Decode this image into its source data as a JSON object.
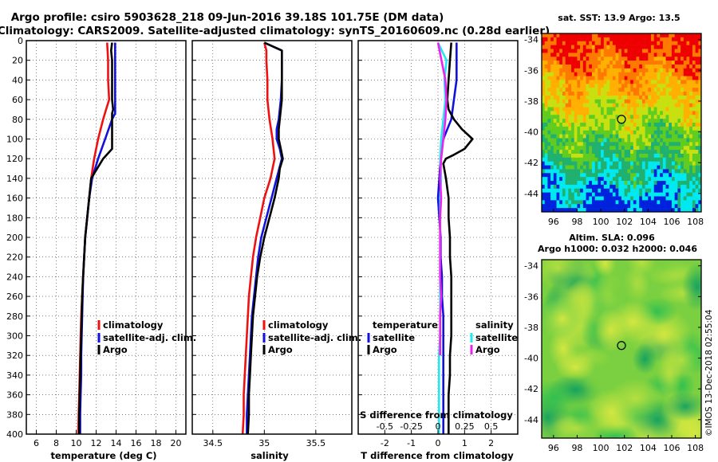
{
  "title": {
    "line1": "Argo profile: csiro 5903628_218 09-Jun-2016 39.18S 101.75E (DM data)",
    "line2": "Climatology: CARS2009. Satellite-adjusted climatology: synTS_20160609.nc (0.28d earlier)"
  },
  "colors": {
    "climatology": "#ee1111",
    "satellite": "#1111dd",
    "argo": "#000000",
    "satellite_salt": "#22e8f0",
    "argo_salt": "#ee22ee"
  },
  "depth_axis": {
    "range": [
      0,
      400
    ],
    "ticks": [
      0,
      20,
      40,
      60,
      80,
      100,
      120,
      140,
      160,
      180,
      200,
      220,
      240,
      260,
      280,
      300,
      320,
      340,
      360,
      380,
      400
    ]
  },
  "chart_data": [
    {
      "type": "line",
      "id": "temperature",
      "xlabel": "temperature (deg C)",
      "xlim": [
        5,
        21
      ],
      "ylim": [
        0,
        400
      ],
      "y_inverted": true,
      "grid": true,
      "xticks": [
        6,
        8,
        10,
        12,
        14,
        16,
        18,
        20
      ],
      "legend": {
        "position": "bottom-center",
        "entries": [
          "climatology",
          "satellite-adj. clim.",
          "Argo"
        ]
      },
      "series": [
        {
          "name": "climatology",
          "color": "#ee1111",
          "y": [
            2,
            20,
            40,
            60,
            70,
            80,
            100,
            120,
            140,
            160,
            180,
            200,
            220,
            240,
            260,
            280,
            300,
            320,
            340,
            360,
            380,
            400
          ],
          "x": [
            13.1,
            13.2,
            13.2,
            13.3,
            13.0,
            12.7,
            12.2,
            11.8,
            11.5,
            11.3,
            11.1,
            10.9,
            10.8,
            10.7,
            10.6,
            10.5,
            10.45,
            10.4,
            10.35,
            10.3,
            10.25,
            10.2
          ]
        },
        {
          "name": "satellite-adj. clim.",
          "color": "#1111dd",
          "y": [
            2,
            20,
            40,
            60,
            70,
            74,
            80,
            100,
            120,
            140,
            160,
            180,
            200,
            220,
            240,
            260,
            280,
            300,
            320,
            340,
            360,
            380,
            400
          ],
          "x": [
            13.9,
            13.9,
            13.9,
            13.9,
            13.9,
            13.9,
            13.6,
            12.9,
            12.2,
            11.6,
            11.3,
            11.1,
            10.9,
            10.8,
            10.7,
            10.65,
            10.6,
            10.55,
            10.5,
            10.5,
            10.45,
            10.4,
            10.4
          ]
        },
        {
          "name": "Argo",
          "color": "#000000",
          "y": [
            2,
            10,
            20,
            40,
            60,
            70,
            74,
            80,
            100,
            110,
            120,
            140,
            160,
            180,
            200,
            220,
            240,
            260,
            280,
            300,
            320,
            340,
            360,
            380,
            400
          ],
          "x": [
            13.6,
            13.5,
            13.6,
            13.6,
            13.6,
            13.7,
            13.6,
            13.6,
            13.6,
            13.6,
            12.7,
            11.5,
            11.3,
            11.1,
            10.9,
            10.8,
            10.7,
            10.6,
            10.55,
            10.5,
            10.45,
            10.4,
            10.35,
            10.3,
            10.3
          ]
        }
      ]
    },
    {
      "type": "line",
      "id": "salinity",
      "xlabel": "salinity",
      "xlim": [
        34.3,
        35.85
      ],
      "ylim": [
        0,
        400
      ],
      "y_inverted": true,
      "grid": true,
      "xticks": [
        34.5,
        35,
        35.5
      ],
      "legend": {
        "position": "bottom-center",
        "entries": [
          "climatology",
          "satellite-adj. clim.",
          "Argo"
        ]
      },
      "series": [
        {
          "name": "climatology",
          "color": "#ee1111",
          "y": [
            2,
            10,
            20,
            40,
            60,
            80,
            100,
            120,
            140,
            160,
            180,
            200,
            220,
            240,
            260,
            280,
            300,
            320,
            340,
            360,
            380,
            400
          ],
          "x": [
            35.0,
            35.02,
            35.02,
            35.03,
            35.03,
            35.05,
            35.08,
            35.1,
            35.06,
            35.0,
            34.96,
            34.92,
            34.89,
            34.87,
            34.85,
            34.84,
            34.83,
            34.82,
            34.81,
            34.8,
            34.8,
            34.79
          ]
        },
        {
          "name": "satellite-adj. clim.",
          "color": "#1111dd",
          "y": [
            2,
            10,
            20,
            40,
            60,
            80,
            90,
            100,
            110,
            120,
            140,
            160,
            180,
            200,
            220,
            240,
            260,
            280,
            300,
            320,
            340,
            360,
            380,
            400
          ],
          "x": [
            35.0,
            35.17,
            35.17,
            35.17,
            35.16,
            35.14,
            35.12,
            35.12,
            35.15,
            35.17,
            35.12,
            35.07,
            35.02,
            34.97,
            34.94,
            34.92,
            34.9,
            34.88,
            34.87,
            34.86,
            34.85,
            34.84,
            34.83,
            34.83
          ]
        },
        {
          "name": "Argo",
          "color": "#000000",
          "y": [
            2,
            10,
            20,
            40,
            60,
            80,
            90,
            100,
            110,
            120,
            130,
            140,
            160,
            180,
            200,
            220,
            240,
            260,
            280,
            300,
            320,
            340,
            360,
            380,
            400
          ],
          "x": [
            35.0,
            35.17,
            35.17,
            35.17,
            35.17,
            35.15,
            35.14,
            35.14,
            35.16,
            35.18,
            35.15,
            35.14,
            35.1,
            35.05,
            35.0,
            34.96,
            34.93,
            34.91,
            34.89,
            34.88,
            34.87,
            34.86,
            34.85,
            34.85,
            34.84
          ]
        }
      ]
    },
    {
      "type": "line",
      "id": "difference",
      "xlabel": "T difference from climatology",
      "xlabel_top": "S difference from climatology",
      "xlim": [
        -3,
        3
      ],
      "ylim": [
        0,
        400
      ],
      "y_inverted": true,
      "grid": true,
      "xticks": [
        -2,
        -1,
        0,
        1,
        2
      ],
      "s_xlim": [
        -0.75,
        0.75
      ],
      "s_xticks_labels": [
        "-0.5",
        "-0.25",
        "0",
        "0.25",
        "0.5"
      ],
      "s_xticks": [
        -0.5,
        -0.25,
        0,
        0.25,
        0.5
      ],
      "legend": {
        "position": "bottom",
        "temperature_heading": "temperature",
        "salinity_heading": "salinity",
        "entries": [
          "satellite",
          "Argo",
          "satellite",
          "Argo"
        ]
      },
      "series": [
        {
          "name": "T satellite",
          "color": "#1111dd",
          "units": "T",
          "y": [
            2,
            20,
            40,
            60,
            80,
            90,
            100,
            120,
            140,
            160,
            180,
            200,
            220,
            240,
            260,
            280,
            300,
            320,
            340,
            360,
            380,
            400
          ],
          "x": [
            0.7,
            0.7,
            0.7,
            0.6,
            0.5,
            0.35,
            0.2,
            0.1,
            0.05,
            0.0,
            0.05,
            0.1,
            0.1,
            0.15,
            0.15,
            0.2,
            0.2,
            0.2,
            0.2,
            0.2,
            0.2,
            0.2
          ]
        },
        {
          "name": "T Argo",
          "color": "#000000",
          "units": "T",
          "y": [
            2,
            20,
            40,
            60,
            70,
            80,
            90,
            100,
            110,
            116,
            120,
            125,
            140,
            160,
            180,
            200,
            220,
            240,
            260,
            280,
            300,
            320,
            340,
            360,
            380,
            400
          ],
          "x": [
            0.5,
            0.45,
            0.4,
            0.35,
            0.4,
            0.6,
            0.9,
            1.3,
            1.0,
            0.6,
            0.3,
            0.2,
            0.3,
            0.4,
            0.4,
            0.45,
            0.45,
            0.5,
            0.5,
            0.5,
            0.5,
            0.45,
            0.45,
            0.4,
            0.4,
            0.4
          ]
        },
        {
          "name": "S satellite",
          "color": "#22e8f0",
          "units": "S",
          "y": [
            2,
            20,
            40,
            60,
            80,
            100,
            120,
            140,
            160,
            180,
            200,
            220,
            240,
            260,
            280,
            300,
            320,
            340,
            360,
            380,
            400
          ],
          "x": [
            0.0,
            0.08,
            0.06,
            0.07,
            0.05,
            0.03,
            0.02,
            0.03,
            0.02,
            0.02,
            0.02,
            0.02,
            0.02,
            0.02,
            0.02,
            0.02,
            0.01,
            0.01,
            0.01,
            0.01,
            0.01
          ]
        },
        {
          "name": "S Argo",
          "color": "#ee22ee",
          "units": "S",
          "y": [
            2,
            40,
            60,
            80,
            100,
            120,
            140,
            160,
            180,
            200,
            220,
            240,
            260,
            280,
            300,
            320
          ],
          "x": [
            0.0,
            0.07,
            0.08,
            0.07,
            0.05,
            0.03,
            0.02,
            0.03,
            0.02,
            0.02,
            0.02,
            0.02,
            0.03,
            0.02,
            0.02,
            0.02
          ]
        }
      ]
    },
    {
      "type": "heatmap",
      "id": "sst-map",
      "title": "sat. SST: 13.9 Argo: 13.5",
      "xlim": [
        95,
        108.5
      ],
      "ylim": [
        -45.2,
        -33.6
      ],
      "xticks": [
        96,
        98,
        100,
        102,
        104,
        106,
        108
      ],
      "yticks": [
        -34,
        -36,
        -38,
        -40,
        -42,
        -44
      ],
      "marker": {
        "lon": 101.75,
        "lat": -39.18
      },
      "colorscale": [
        "#0022dd",
        "#00e8f0",
        "#20b070",
        "#60cc20",
        "#c8e010",
        "#ffb000",
        "#ff7800",
        "#ee0000"
      ],
      "cell_deg": 0.25
    },
    {
      "type": "heatmap",
      "id": "sla-map",
      "title": "Altim. SLA: 0.096",
      "title2": "Argo h1000: 0.032 h2000: 0.046",
      "xlim": [
        95,
        108.5
      ],
      "ylim": [
        -45.2,
        -33.6
      ],
      "xticks": [
        96,
        98,
        100,
        102,
        104,
        106,
        108
      ],
      "yticks": [
        -34,
        -36,
        -38,
        -40,
        -42,
        -44
      ],
      "marker": {
        "lon": 101.75,
        "lat": -39.18
      },
      "colorscale": [
        "#10a060",
        "#30c050",
        "#7ad040",
        "#b8e040",
        "#d8e840"
      ]
    }
  ],
  "stamp": "©IMOS 13-Dec-2018 02:55:04"
}
